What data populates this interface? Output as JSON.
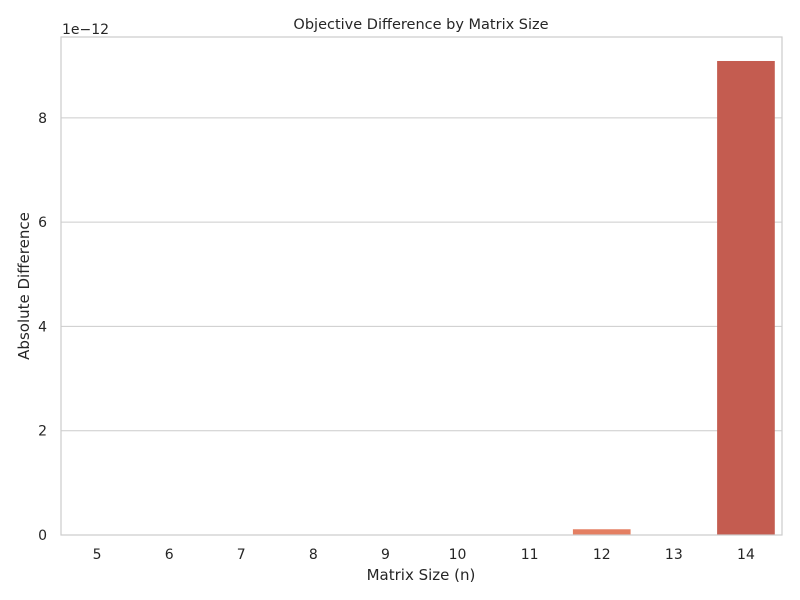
{
  "chart_data": {
    "type": "bar",
    "title": "Objective Difference by Matrix Size",
    "xlabel": "Matrix Size (n)",
    "ylabel": "Absolute Difference",
    "y_offset_text": "1e−12",
    "categories": [
      "5",
      "6",
      "7",
      "8",
      "9",
      "10",
      "11",
      "12",
      "13",
      "14"
    ],
    "values": [
      0,
      0,
      0,
      0,
      0,
      0,
      0,
      0.11,
      0,
      9.09
    ],
    "ylim": [
      0,
      9.55
    ],
    "yticks": [
      0,
      2,
      4,
      6,
      8
    ],
    "ytick_labels": [
      "0",
      "2",
      "4",
      "6",
      "8"
    ],
    "grid": true,
    "bar_colors": [
      "#fbe9df",
      "#fbe0d2",
      "#f8d3c2",
      "#f5c4af",
      "#f2b39a",
      "#eea286",
      "#e89073",
      "#e47f62",
      "#d96a55",
      "#c45c50"
    ]
  }
}
